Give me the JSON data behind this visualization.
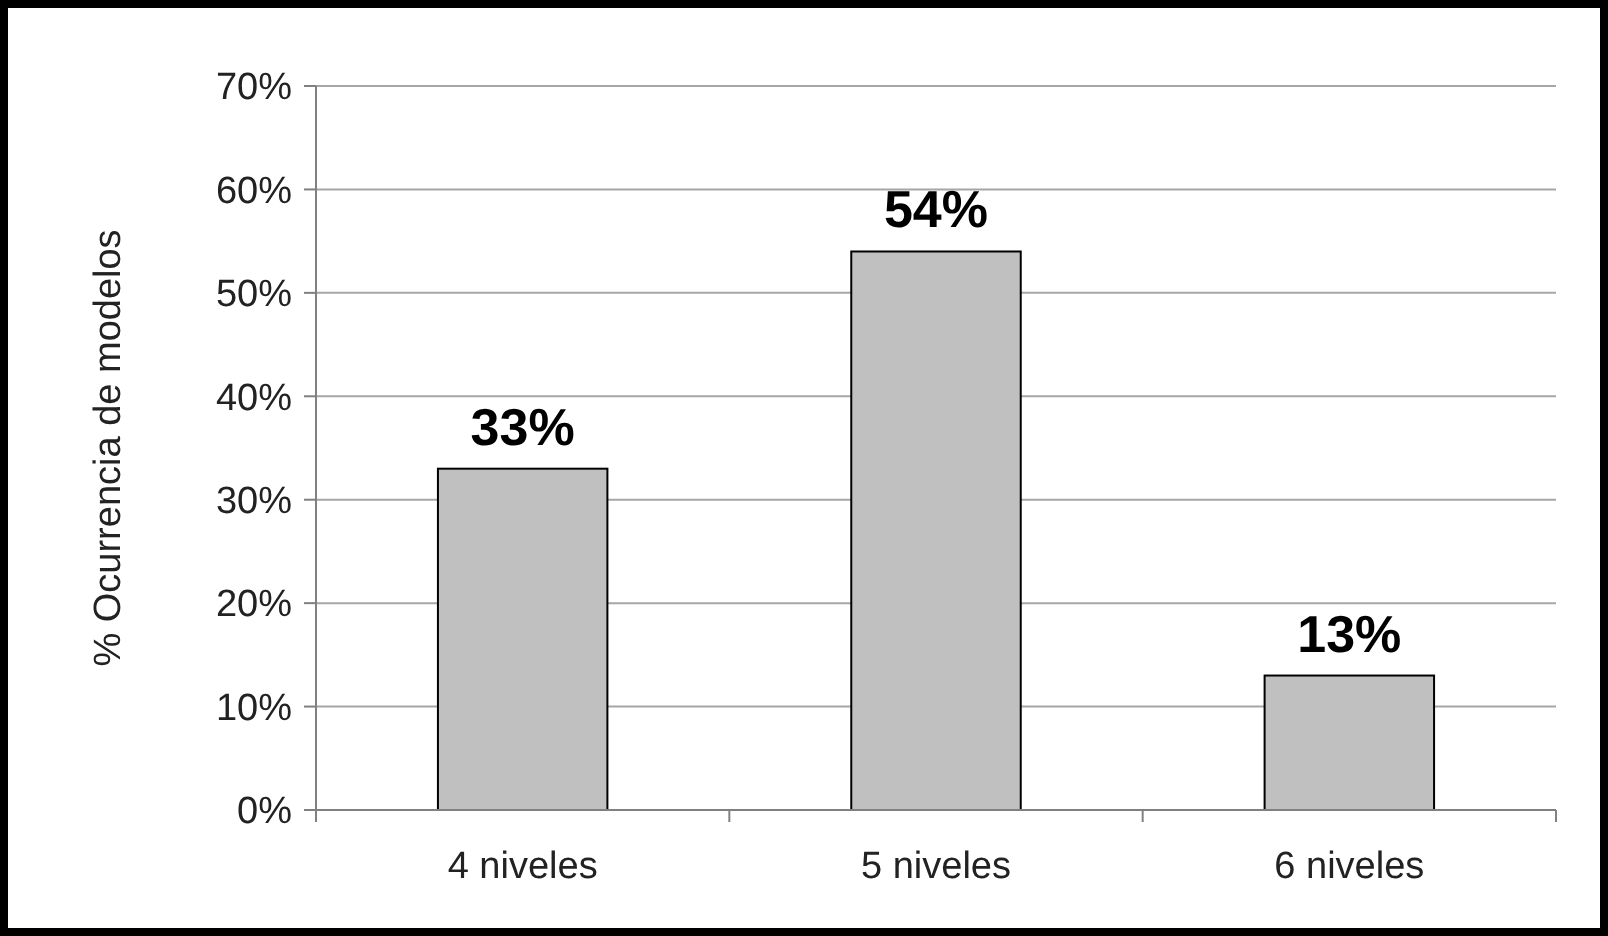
{
  "chart_data": {
    "type": "bar",
    "ylabel": "% Ocurrencia de modelos",
    "categories": [
      "4 niveles",
      "5 niveles",
      "6 niveles"
    ],
    "values": [
      33,
      54,
      13
    ],
    "value_labels": [
      "33%",
      "54%",
      "13%"
    ],
    "color": "#c0c0c0",
    "ylim": [
      0,
      70
    ],
    "yticks": [
      {
        "value": 0,
        "label": "0%"
      },
      {
        "value": 10,
        "label": "10%"
      },
      {
        "value": 20,
        "label": "20%"
      },
      {
        "value": 30,
        "label": "30%"
      },
      {
        "value": 40,
        "label": "40%"
      },
      {
        "value": 50,
        "label": "50%"
      },
      {
        "value": 60,
        "label": "60%"
      },
      {
        "value": 70,
        "label": "70%"
      }
    ],
    "grid": "y"
  }
}
